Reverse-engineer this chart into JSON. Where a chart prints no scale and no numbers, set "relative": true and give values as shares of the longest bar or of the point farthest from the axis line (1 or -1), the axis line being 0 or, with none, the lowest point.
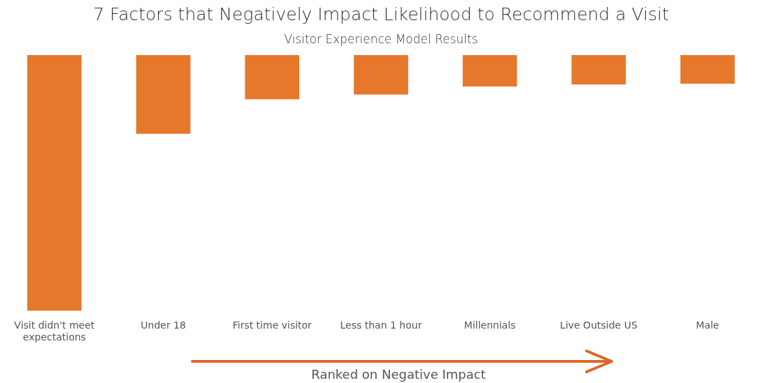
{
  "chart_data": {
    "type": "bar",
    "title": "7 Factors that Negatively Impact Likelihood to Recommend a Visit",
    "subtitle": "Visitor Experience Model Results",
    "xlabel": "Ranked on Negative Impact",
    "categories": [
      "Visit didn't meet expectations",
      "Under 18",
      "First time visitor",
      "Less than 1 hour",
      "Millennials",
      "Live Outside US",
      "Male"
    ],
    "values": [
      -1,
      -0.307,
      -0.172,
      -0.153,
      -0.122,
      -0.114,
      -0.111
    ],
    "color": "#e5782a",
    "relative": true,
    "grid": false,
    "legend": false
  }
}
